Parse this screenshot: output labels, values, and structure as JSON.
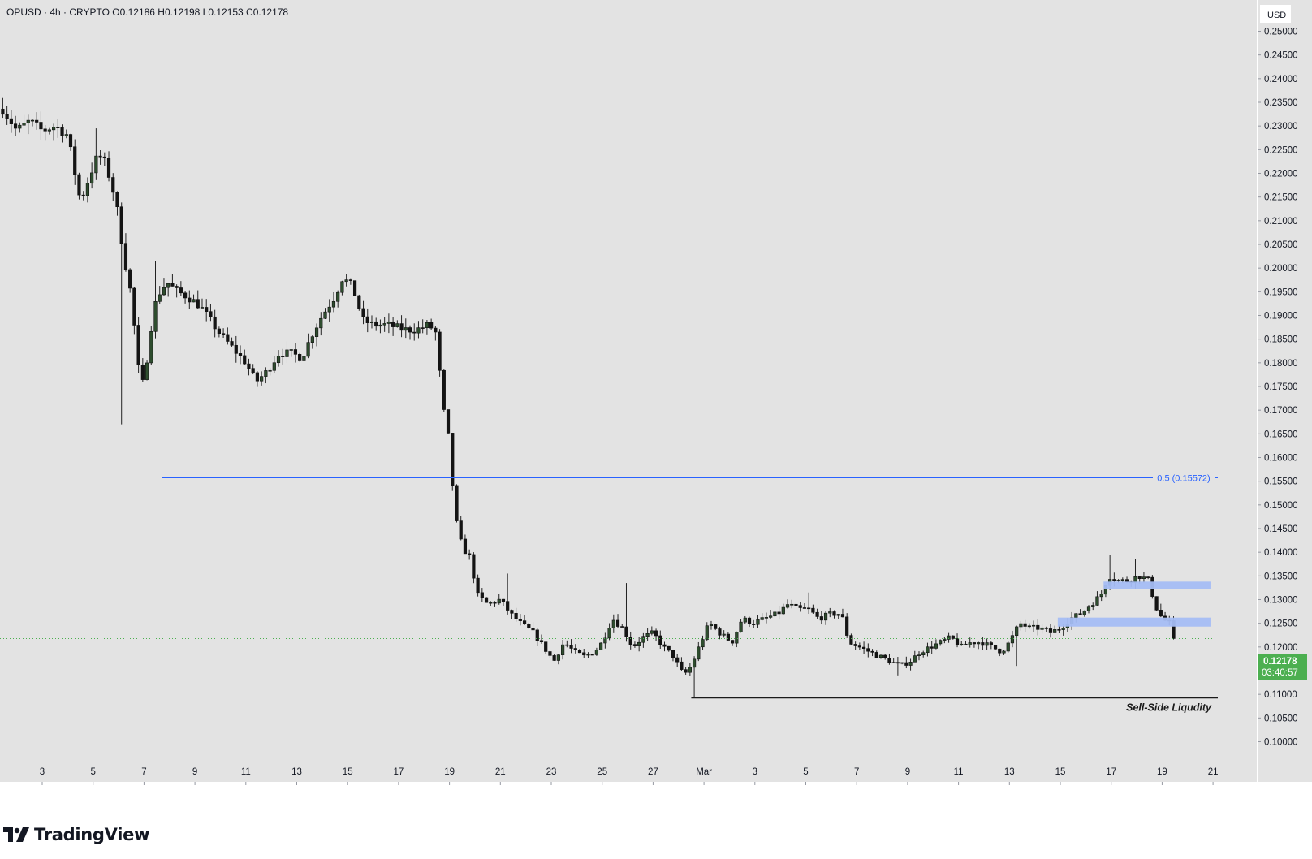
{
  "header": {
    "symbol": "OPUSD",
    "interval": "4h",
    "exchange": "CRYPTO",
    "ohlc": "O0.12186  H0.12198  L0.12153  C0.12178",
    "text": "OPUSD · 4h · CRYPTO   O0.12186  H0.12198  L0.12153  C0.12178"
  },
  "currency_label": "USD",
  "last_price": {
    "value": "0.12178",
    "countdown": "03:40:57"
  },
  "brand": "TradingView",
  "colors": {
    "background": "#e3e3e3",
    "bull_body": "#2e4d2e",
    "bear_body": "#141414",
    "wick": "#222222",
    "fib_line": "#2962ff",
    "zone_fill": "#a5bdf4",
    "sell_side_line": "#1a1a1a",
    "last_price_badge": "#4caf50"
  },
  "chart_data": {
    "type": "candlestick",
    "title": "",
    "ylim": [
      0.095,
      0.253
    ],
    "y_ticks": [
      "0.25000",
      "0.24500",
      "0.24000",
      "0.23500",
      "0.23000",
      "0.22500",
      "0.22000",
      "0.21500",
      "0.21000",
      "0.20500",
      "0.20000",
      "0.19500",
      "0.19000",
      "0.18500",
      "0.18000",
      "0.17500",
      "0.17000",
      "0.16500",
      "0.16000",
      "0.15500",
      "0.15000",
      "0.14500",
      "0.14000",
      "0.13500",
      "0.13000",
      "0.12500",
      "0.12000",
      "0.11500",
      "0.11000",
      "0.10500",
      "0.10000"
    ],
    "x_ticks": [
      {
        "label": "3",
        "day": 3
      },
      {
        "label": "5",
        "day": 5
      },
      {
        "label": "7",
        "day": 7
      },
      {
        "label": "9",
        "day": 9
      },
      {
        "label": "11",
        "day": 11
      },
      {
        "label": "13",
        "day": 13
      },
      {
        "label": "15",
        "day": 15
      },
      {
        "label": "17",
        "day": 17
      },
      {
        "label": "19",
        "day": 19
      },
      {
        "label": "21",
        "day": 21
      },
      {
        "label": "23",
        "day": 23
      },
      {
        "label": "25",
        "day": 25
      },
      {
        "label": "27",
        "day": 27
      },
      {
        "label": "Mar",
        "day": 29
      },
      {
        "label": "3",
        "day": 31
      },
      {
        "label": "5",
        "day": 33
      },
      {
        "label": "7",
        "day": 35
      },
      {
        "label": "9",
        "day": 37
      },
      {
        "label": "11",
        "day": 39
      },
      {
        "label": "13",
        "day": 41
      },
      {
        "label": "15",
        "day": 43
      },
      {
        "label": "17",
        "day": 45
      },
      {
        "label": "19",
        "day": 47
      },
      {
        "label": "21",
        "day": 49
      }
    ],
    "path_points": [
      [
        1.4,
        0.234
      ],
      [
        2.0,
        0.229
      ],
      [
        2.5,
        0.231
      ],
      [
        3.0,
        0.229
      ],
      [
        3.5,
        0.23
      ],
      [
        4.0,
        0.228
      ],
      [
        4.5,
        0.214
      ],
      [
        4.9,
        0.22
      ],
      [
        5.2,
        0.224
      ],
      [
        5.5,
        0.222
      ],
      [
        5.9,
        0.214
      ],
      [
        6.2,
        0.203
      ],
      [
        6.5,
        0.194
      ],
      [
        6.8,
        0.178
      ],
      [
        7.0,
        0.175
      ],
      [
        7.2,
        0.185
      ],
      [
        7.5,
        0.194
      ],
      [
        7.9,
        0.197
      ],
      [
        8.3,
        0.195
      ],
      [
        8.7,
        0.194
      ],
      [
        9.2,
        0.192
      ],
      [
        9.6,
        0.189
      ],
      [
        10.0,
        0.186
      ],
      [
        10.5,
        0.183
      ],
      [
        11.0,
        0.18
      ],
      [
        11.4,
        0.176
      ],
      [
        11.8,
        0.178
      ],
      [
        12.3,
        0.182
      ],
      [
        12.8,
        0.182
      ],
      [
        13.2,
        0.181
      ],
      [
        13.6,
        0.186
      ],
      [
        14.0,
        0.19
      ],
      [
        14.5,
        0.194
      ],
      [
        14.8,
        0.198
      ],
      [
        15.2,
        0.196
      ],
      [
        15.6,
        0.189
      ],
      [
        16.0,
        0.188
      ],
      [
        16.6,
        0.188
      ],
      [
        17.2,
        0.187
      ],
      [
        17.7,
        0.187
      ],
      [
        18.2,
        0.188
      ],
      [
        18.5,
        0.186
      ],
      [
        18.7,
        0.172
      ],
      [
        19.0,
        0.163
      ],
      [
        19.2,
        0.148
      ],
      [
        19.5,
        0.141
      ],
      [
        19.8,
        0.139
      ],
      [
        20.1,
        0.131
      ],
      [
        20.5,
        0.129
      ],
      [
        21.0,
        0.13
      ],
      [
        21.4,
        0.127
      ],
      [
        21.8,
        0.125
      ],
      [
        22.3,
        0.123
      ],
      [
        22.7,
        0.12
      ],
      [
        23.1,
        0.117
      ],
      [
        23.5,
        0.121
      ],
      [
        23.9,
        0.119
      ],
      [
        24.3,
        0.118
      ],
      [
        24.7,
        0.119
      ],
      [
        25.0,
        0.121
      ],
      [
        25.4,
        0.126
      ],
      [
        25.8,
        0.124
      ],
      [
        26.2,
        0.12
      ],
      [
        26.6,
        0.122
      ],
      [
        27.0,
        0.123
      ],
      [
        27.4,
        0.12
      ],
      [
        27.8,
        0.118
      ],
      [
        28.2,
        0.114
      ],
      [
        28.5,
        0.116
      ],
      [
        28.8,
        0.12
      ],
      [
        29.2,
        0.125
      ],
      [
        29.6,
        0.123
      ],
      [
        30.1,
        0.121
      ],
      [
        30.5,
        0.126
      ],
      [
        30.9,
        0.125
      ],
      [
        31.4,
        0.126
      ],
      [
        31.9,
        0.127
      ],
      [
        32.3,
        0.129
      ],
      [
        32.7,
        0.128
      ],
      [
        33.1,
        0.128
      ],
      [
        33.5,
        0.126
      ],
      [
        34.0,
        0.127
      ],
      [
        34.4,
        0.127
      ],
      [
        34.7,
        0.121
      ],
      [
        35.1,
        0.12
      ],
      [
        35.5,
        0.119
      ],
      [
        35.9,
        0.118
      ],
      [
        36.3,
        0.117
      ],
      [
        36.7,
        0.116
      ],
      [
        37.1,
        0.117
      ],
      [
        37.5,
        0.119
      ],
      [
        37.9,
        0.12
      ],
      [
        38.3,
        0.121
      ],
      [
        38.7,
        0.122
      ],
      [
        39.1,
        0.12
      ],
      [
        39.5,
        0.121
      ],
      [
        39.9,
        0.121
      ],
      [
        40.3,
        0.12
      ],
      [
        40.7,
        0.119
      ],
      [
        41.0,
        0.121
      ],
      [
        41.4,
        0.125
      ],
      [
        41.8,
        0.124
      ],
      [
        42.2,
        0.124
      ],
      [
        42.6,
        0.123
      ],
      [
        43.0,
        0.124
      ],
      [
        43.4,
        0.126
      ],
      [
        43.8,
        0.127
      ],
      [
        44.2,
        0.129
      ],
      [
        44.6,
        0.131
      ],
      [
        44.9,
        0.135
      ],
      [
        45.3,
        0.134
      ],
      [
        45.7,
        0.134
      ],
      [
        46.1,
        0.135
      ],
      [
        46.5,
        0.134
      ],
      [
        46.7,
        0.129
      ],
      [
        47.0,
        0.126
      ],
      [
        47.3,
        0.125
      ],
      [
        47.5,
        0.1218
      ]
    ],
    "spikes": [
      {
        "x": 6.1,
        "low": 0.167
      },
      {
        "x": 5.2,
        "high": 0.2295
      },
      {
        "x": 7.5,
        "high": 0.2015
      },
      {
        "x": 21.3,
        "high": 0.1355
      },
      {
        "x": 26.0,
        "high": 0.1335
      },
      {
        "x": 28.6,
        "low": 0.1095
      },
      {
        "x": 33.2,
        "high": 0.1315
      },
      {
        "x": 44.9,
        "high": 0.1395
      },
      {
        "x": 45.9,
        "high": 0.1385
      },
      {
        "x": 41.3,
        "low": 0.116
      },
      {
        "x": 36.6,
        "low": 0.114
      }
    ],
    "fib_level": {
      "x_start_day": 7.7,
      "value": 0.15572,
      "label": "0.5 (0.15572)"
    },
    "zones": [
      {
        "x_start_day": 44.7,
        "x_end_day": 48.9,
        "low": 0.1322,
        "high": 0.1338
      },
      {
        "x_start_day": 42.9,
        "x_end_day": 48.9,
        "low": 0.1243,
        "high": 0.1262
      }
    ],
    "sell_side_liquidity": {
      "x_start_day": 28.5,
      "value": 0.1093,
      "label": "Sell-Side Liqudity"
    },
    "last_price": 0.12178
  }
}
